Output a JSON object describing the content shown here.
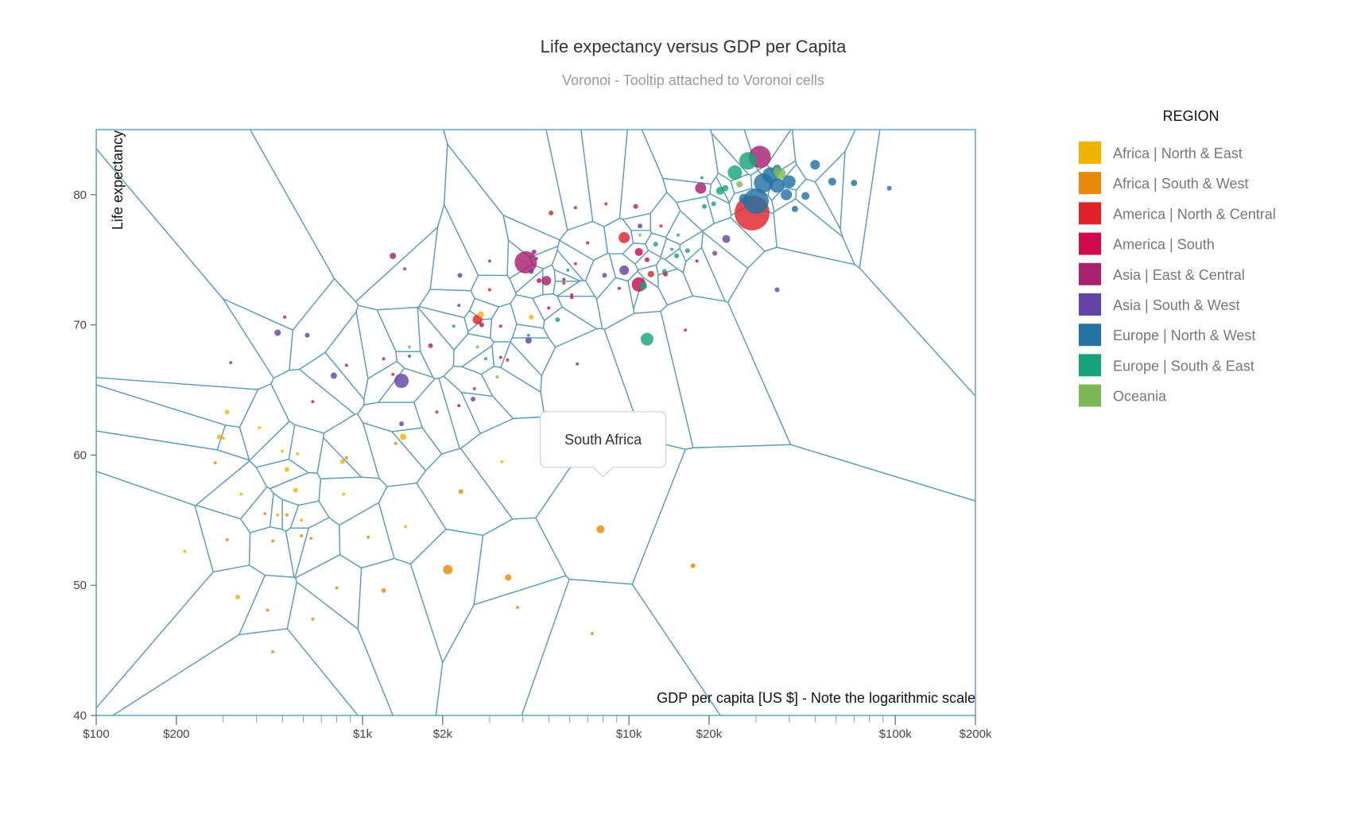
{
  "chart_data": {
    "type": "scatter",
    "title": "Life expectancy versus GDP per Capita",
    "subtitle": "Voronoi - Tooltip attached to Voronoi cells",
    "xlabel": "GDP per capita [US $] - Note the logarithmic scale",
    "ylabel": "Life expectancy",
    "x_scale": "log",
    "xlim": [
      100,
      200000
    ],
    "ylim": [
      40,
      85
    ],
    "x_ticks": [
      {
        "value": 100,
        "label": "$100"
      },
      {
        "value": 200,
        "label": "$200"
      },
      {
        "value": 1000,
        "label": "$1k"
      },
      {
        "value": 2000,
        "label": "$2k"
      },
      {
        "value": 10000,
        "label": "$10k"
      },
      {
        "value": 20000,
        "label": "$20k"
      },
      {
        "value": 100000,
        "label": "$100k"
      },
      {
        "value": 200000,
        "label": "$200k"
      }
    ],
    "y_ticks": [
      40,
      50,
      60,
      70,
      80
    ],
    "grid": false,
    "legend": {
      "title": "REGION",
      "position": "right",
      "items": [
        {
          "label": "Africa | North & East",
          "color": "#F0B400"
        },
        {
          "label": "Africa | South & West",
          "color": "#E8890C"
        },
        {
          "label": "America | North & Central",
          "color": "#E0232B"
        },
        {
          "label": "America | South",
          "color": "#D10A4E"
        },
        {
          "label": "Asia | East & Central",
          "color": "#A8206F"
        },
        {
          "label": "Asia | South & West",
          "color": "#6243A8"
        },
        {
          "label": "Europe | North & West",
          "color": "#2272A6"
        },
        {
          "label": "Europe | South & East",
          "color": "#17A37A"
        },
        {
          "label": "Oceania",
          "color": "#7CB955"
        }
      ]
    },
    "tooltip": {
      "text": "South Africa",
      "x": 8000,
      "y": 54.3
    },
    "series": [
      {
        "name": "Africa | North & East",
        "points": [
          [
            310,
            63.3,
            3
          ],
          [
            290,
            61.4,
            3
          ],
          [
            300,
            61.3,
            2
          ],
          [
            410,
            62.1,
            2
          ],
          [
            500,
            60.3,
            2
          ],
          [
            350,
            57.0,
            2
          ],
          [
            520,
            58.9,
            3
          ],
          [
            570,
            60.1,
            2
          ],
          [
            840,
            59.5,
            3
          ],
          [
            1420,
            61.4,
            4
          ],
          [
            560,
            57.3,
            3
          ],
          [
            480,
            55.4,
            2
          ],
          [
            590,
            55.0,
            2
          ],
          [
            215,
            52.6,
            2
          ],
          [
            1450,
            54.5,
            2
          ],
          [
            340,
            49.1,
            3
          ],
          [
            850,
            57.0,
            2
          ],
          [
            3330,
            59.5,
            2
          ],
          [
            4300,
            70.6,
            3
          ],
          [
            2780,
            70.8,
            4
          ]
        ]
      },
      {
        "name": "Africa | South & West",
        "points": [
          [
            280,
            59.4,
            2
          ],
          [
            430,
            55.5,
            2
          ],
          [
            520,
            55.4,
            2
          ],
          [
            590,
            53.8,
            2
          ],
          [
            870,
            59.8,
            2
          ],
          [
            1050,
            53.7,
            2
          ],
          [
            1330,
            60.9,
            2
          ],
          [
            2340,
            57.2,
            3
          ],
          [
            2090,
            51.2,
            6
          ],
          [
            3520,
            50.6,
            4
          ],
          [
            7820,
            54.3,
            5
          ],
          [
            17400,
            51.5,
            3
          ],
          [
            3820,
            48.3,
            2
          ],
          [
            7280,
            46.3,
            2
          ],
          [
            800,
            49.8,
            2
          ],
          [
            1200,
            49.6,
            3
          ],
          [
            650,
            47.4,
            2
          ],
          [
            440,
            48.1,
            2
          ],
          [
            460,
            44.9,
            2
          ],
          [
            640,
            53.6,
            2
          ],
          [
            460,
            53.4,
            2
          ],
          [
            310,
            53.5,
            2
          ]
        ]
      },
      {
        "name": "America | North & Central",
        "points": [
          [
            29000,
            78.6,
            22
          ],
          [
            9600,
            76.7,
            7
          ],
          [
            12100,
            73.9,
            4
          ],
          [
            2700,
            70.4,
            6
          ],
          [
            1300,
            66.2,
            2
          ],
          [
            3000,
            72.7,
            2
          ],
          [
            5100,
            78.6,
            3
          ],
          [
            8200,
            79.3,
            2
          ],
          [
            6300,
            74.7,
            2
          ],
          [
            5700,
            73.2,
            2
          ],
          [
            16300,
            69.6,
            2
          ],
          [
            1440,
            74.3,
            2
          ],
          [
            2630,
            65.1,
            2
          ],
          [
            1900,
            63.3,
            2
          ],
          [
            3500,
            67.3,
            2
          ],
          [
            13200,
            77.6,
            2
          ]
        ]
      },
      {
        "name": "America | South",
        "points": [
          [
            10900,
            73.1,
            9
          ],
          [
            10900,
            75.6,
            5
          ],
          [
            6100,
            72.1,
            2
          ],
          [
            7000,
            76.3,
            2
          ],
          [
            4600,
            73.4,
            3
          ],
          [
            18000,
            74.9,
            2
          ],
          [
            5000,
            71.3,
            2
          ],
          [
            3300,
            69.9,
            2
          ],
          [
            2300,
            63.8,
            2
          ],
          [
            11700,
            75.0,
            3
          ],
          [
            9200,
            72.8,
            2
          ],
          [
            13700,
            73.9,
            3
          ]
        ]
      },
      {
        "name": "Asia | East & Central",
        "points": [
          [
            31000,
            82.9,
            14
          ],
          [
            18600,
            80.5,
            7
          ],
          [
            4100,
            74.8,
            14
          ],
          [
            4900,
            73.4,
            6
          ],
          [
            6300,
            79.0,
            2
          ],
          [
            10600,
            79.1,
            3
          ],
          [
            1800,
            68.4,
            3
          ],
          [
            2800,
            70.0,
            3
          ],
          [
            6100,
            72.3,
            2
          ],
          [
            4400,
            75.6,
            3
          ],
          [
            5700,
            73.5,
            2
          ],
          [
            650,
            64.1,
            2
          ],
          [
            1200,
            67.4,
            2
          ],
          [
            3300,
            67.5,
            2
          ],
          [
            1300,
            75.3,
            4
          ],
          [
            870,
            66.9,
            2
          ],
          [
            510,
            70.6,
            2
          ]
        ]
      },
      {
        "name": "Asia | South & West",
        "points": [
          [
            1400,
            65.7,
            9
          ],
          [
            9600,
            74.2,
            6
          ],
          [
            480,
            69.4,
            4
          ],
          [
            620,
            69.2,
            3
          ],
          [
            780,
            66.1,
            4
          ],
          [
            4200,
            68.8,
            4
          ],
          [
            23200,
            76.6,
            5
          ],
          [
            1400,
            62.4,
            3
          ],
          [
            6400,
            67.0,
            2
          ],
          [
            21000,
            75.5,
            3
          ],
          [
            36000,
            72.7,
            3
          ],
          [
            2320,
            73.8,
            3
          ],
          [
            11000,
            77.6,
            3
          ],
          [
            8100,
            73.8,
            3
          ],
          [
            2600,
            64.3,
            3
          ],
          [
            1500,
            67.6,
            2
          ],
          [
            3000,
            74.9,
            2
          ],
          [
            320,
            67.1,
            2
          ],
          [
            4300,
            74.1,
            3
          ],
          [
            4500,
            75.1,
            2
          ],
          [
            2300,
            71.5,
            2
          ]
        ]
      },
      {
        "name": "Europe | North & West",
        "points": [
          [
            30000,
            79.5,
            16
          ],
          [
            32000,
            80.9,
            12
          ],
          [
            34000,
            81.5,
            10
          ],
          [
            36000,
            80.7,
            9
          ],
          [
            40000,
            81.0,
            8
          ],
          [
            50000,
            82.3,
            6
          ],
          [
            58000,
            81.0,
            5
          ],
          [
            27000,
            79.7,
            6
          ],
          [
            36000,
            82.0,
            5
          ],
          [
            39000,
            80.0,
            7
          ],
          [
            46000,
            79.9,
            5
          ],
          [
            70000,
            80.9,
            4
          ],
          [
            95000,
            80.5,
            3
          ],
          [
            42000,
            78.9,
            4
          ]
        ]
      },
      {
        "name": "Europe | South & East",
        "points": [
          [
            25000,
            81.7,
            9
          ],
          [
            28000,
            82.6,
            11
          ],
          [
            22000,
            80.3,
            5
          ],
          [
            11300,
            73.0,
            5
          ],
          [
            11700,
            68.9,
            8
          ],
          [
            13600,
            74.1,
            3
          ],
          [
            16600,
            75.7,
            3
          ],
          [
            15100,
            75.3,
            3
          ],
          [
            19200,
            79.1,
            3
          ],
          [
            15300,
            76.9,
            2
          ],
          [
            20800,
            79.3,
            3
          ],
          [
            23000,
            80.5,
            4
          ],
          [
            12600,
            76.2,
            3
          ],
          [
            14500,
            75.8,
            2
          ],
          [
            5900,
            74.2,
            2
          ],
          [
            5400,
            70.4,
            3
          ],
          [
            2900,
            67.4,
            2
          ],
          [
            18800,
            81.3,
            2
          ],
          [
            2200,
            69.9,
            2
          ],
          [
            4200,
            69.2,
            2
          ]
        ]
      },
      {
        "name": "Oceania",
        "points": [
          [
            37000,
            81.6,
            7
          ],
          [
            26000,
            80.8,
            4
          ],
          [
            3200,
            66.0,
            2
          ],
          [
            2700,
            68.3,
            2
          ],
          [
            1500,
            68.3,
            2
          ],
          [
            11000,
            76.9,
            2
          ],
          [
            36000,
            81.8,
            5
          ]
        ]
      }
    ]
  }
}
